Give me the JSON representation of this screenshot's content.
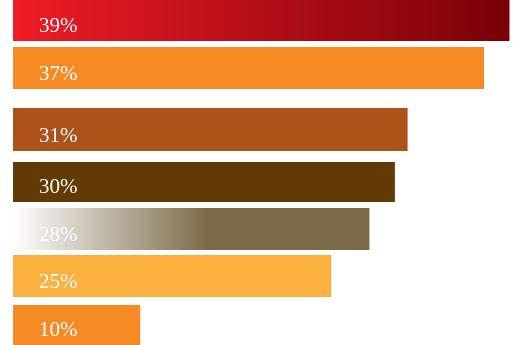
{
  "chart_data": {
    "type": "bar",
    "orientation": "horizontal",
    "title": "",
    "xlabel": "",
    "ylabel": "",
    "grid": false,
    "legend": "none",
    "xlim": [
      0,
      40
    ],
    "bars": [
      {
        "value": 39,
        "label": "39%",
        "color": "#b80d1e",
        "gradient": [
          "#ee1c25",
          "#7a0008"
        ]
      },
      {
        "value": 37,
        "label": "37%",
        "color": "#f68b26"
      },
      {
        "value": 31,
        "label": "31%",
        "color": "#ad5219"
      },
      {
        "value": 30,
        "label": "30%",
        "color": "#633a03"
      },
      {
        "value": 28,
        "label": "28%",
        "color": "#7a6a48",
        "gradient": [
          "#ffffff",
          "#7a6a48"
        ]
      },
      {
        "value": 25,
        "label": "25%",
        "color": "#fbb040"
      },
      {
        "value": 10,
        "label": "10%",
        "color": "#f68b26"
      }
    ]
  }
}
